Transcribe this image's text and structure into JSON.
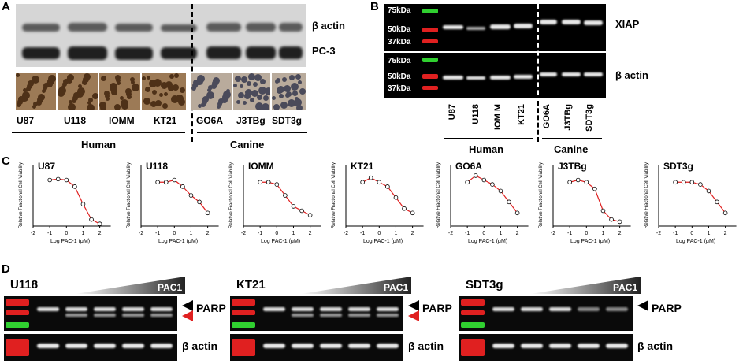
{
  "panelA": {
    "letter": "A",
    "labels_right": [
      "β actin",
      "PC-3"
    ],
    "lanes": [
      "U87",
      "U118",
      "IOMM",
      "KT21",
      "GO6A",
      "J3TBg",
      "SDT3g"
    ],
    "groups": [
      "Human",
      "Canine"
    ]
  },
  "panelB": {
    "letter": "B",
    "markers": [
      "75kDa",
      "50kDa",
      "37kDa"
    ],
    "labels_right": [
      "XIAP",
      "β actin"
    ],
    "lanes": [
      "U87",
      "U118",
      "IOM M",
      "KT21",
      "GO6A",
      "J3TBg",
      "SDT3g"
    ],
    "groups": [
      "Human",
      "Canine"
    ]
  },
  "panelC": {
    "letter": "C",
    "ylabel": "Relative Fractional Cell Viability",
    "xlabel": "Log PAC-1 (μM)",
    "xticks": [
      "-2",
      "-1",
      "0",
      "1",
      "2"
    ],
    "yticks": [
      "0.5"
    ],
    "chart_data": [
      {
        "type": "scatter",
        "title": "U87",
        "x": [
          -1,
          -0.5,
          0,
          0.5,
          1,
          1.5,
          2
        ],
        "y": [
          1.05,
          1.07,
          1.05,
          0.9,
          0.5,
          0.15,
          0.05
        ]
      },
      {
        "type": "scatter",
        "title": "U118",
        "x": [
          -1,
          -0.5,
          0,
          0.5,
          1,
          1.5,
          2
        ],
        "y": [
          1.0,
          1.0,
          1.05,
          0.9,
          0.7,
          0.55,
          0.3
        ]
      },
      {
        "type": "scatter",
        "title": "IOMM",
        "x": [
          -1,
          -0.5,
          0,
          0.5,
          1,
          1.5,
          2
        ],
        "y": [
          1.0,
          1.0,
          0.95,
          0.7,
          0.45,
          0.35,
          0.25
        ]
      },
      {
        "type": "scatter",
        "title": "KT21",
        "x": [
          -1,
          -0.5,
          0,
          0.5,
          1,
          1.5,
          2
        ],
        "y": [
          1.0,
          1.1,
          1.0,
          0.9,
          0.65,
          0.4,
          0.3
        ]
      },
      {
        "type": "scatter",
        "title": "GO6A",
        "x": [
          -1,
          -0.5,
          0,
          0.5,
          1,
          1.5,
          2
        ],
        "y": [
          1.0,
          1.15,
          1.05,
          0.95,
          0.8,
          0.55,
          0.3
        ]
      },
      {
        "type": "scatter",
        "title": "J3TBg",
        "x": [
          -1,
          -0.5,
          0,
          0.5,
          1,
          1.5,
          2
        ],
        "y": [
          1.0,
          1.05,
          1.0,
          0.85,
          0.35,
          0.15,
          0.1
        ]
      },
      {
        "type": "scatter",
        "title": "SDT3g",
        "x": [
          -1,
          -0.5,
          0,
          0.5,
          1,
          1.5,
          2
        ],
        "y": [
          1.0,
          1.0,
          1.0,
          0.95,
          0.8,
          0.55,
          0.3
        ]
      }
    ]
  },
  "panelD": {
    "letter": "D",
    "blots": [
      {
        "name": "U118",
        "drug": "PAC1",
        "target": "PARP",
        "loading": "β actin",
        "red_arrow": true
      },
      {
        "name": "KT21",
        "drug": "PAC1",
        "target": "PARP",
        "loading": "β actin",
        "red_arrow": true
      },
      {
        "name": "SDT3g",
        "drug": "PAC1",
        "target": "PARP",
        "loading": "β actin",
        "red_arrow": false
      }
    ]
  },
  "colors": {
    "fit": "#e02020",
    "ladder_red": "#e02020",
    "ladder_green": "#30d030"
  }
}
